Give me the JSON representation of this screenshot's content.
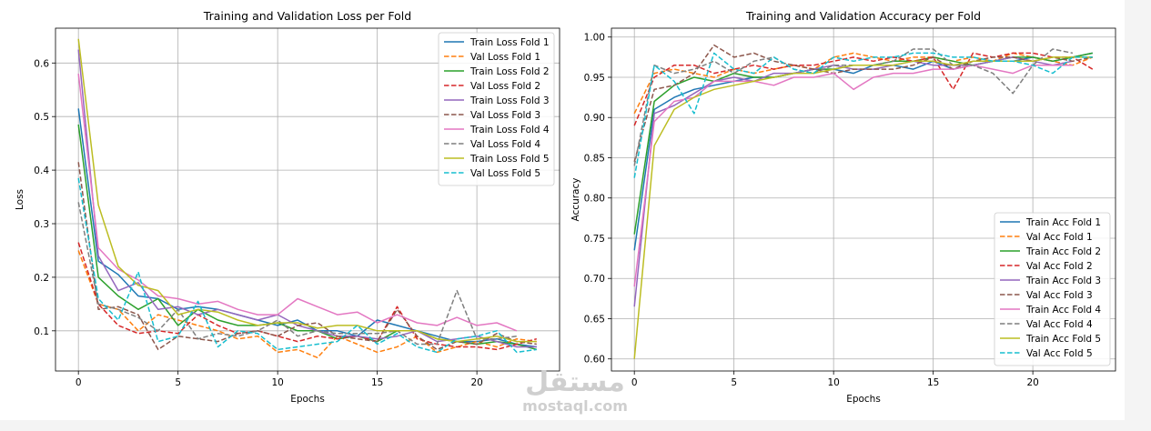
{
  "watermark": {
    "arabic": "مستقل",
    "latin": "mostaql.com"
  },
  "chart_data": [
    {
      "type": "line",
      "title": "Training and Validation Loss per Fold",
      "xlabel": "Epochs",
      "ylabel": "Loss",
      "xlim": [
        -1.15,
        24.15
      ],
      "ylim": [
        0.025,
        0.665
      ],
      "xticks": [
        0,
        5,
        10,
        15,
        20
      ],
      "yticks": [
        0.1,
        0.2,
        0.3,
        0.4,
        0.5,
        0.6
      ],
      "ytick_labels": [
        "0.1",
        "0.2",
        "0.3",
        "0.4",
        "0.5",
        "0.6"
      ],
      "grid": true,
      "legend_position": "top-right",
      "x": [
        0,
        1,
        2,
        3,
        4,
        5,
        6,
        7,
        8,
        9,
        10,
        11,
        12,
        13,
        14,
        15,
        16,
        17,
        18,
        19,
        20,
        21,
        22,
        23
      ],
      "series": [
        {
          "name": "Train Loss Fold 1",
          "color": "#1f77b4",
          "dashed": false,
          "values": [
            0.515,
            0.23,
            0.205,
            0.165,
            0.16,
            0.14,
            0.145,
            0.14,
            0.13,
            0.12,
            0.11,
            0.12,
            0.1,
            0.1,
            0.09,
            0.12,
            0.11,
            0.1,
            0.09,
            0.08,
            0.08,
            0.085,
            0.075,
            0.07
          ]
        },
        {
          "name": "Val Loss Fold 1",
          "color": "#ff7f0e",
          "dashed": true,
          "values": [
            0.25,
            0.15,
            0.14,
            0.1,
            0.13,
            0.12,
            0.11,
            0.1,
            0.085,
            0.09,
            0.06,
            0.065,
            0.05,
            0.09,
            0.075,
            0.06,
            0.07,
            0.09,
            0.06,
            0.07,
            0.08,
            0.07,
            0.085,
            0.08
          ]
        },
        {
          "name": "Train Loss Fold 2",
          "color": "#2ca02c",
          "dashed": false,
          "values": [
            0.485,
            0.2,
            0.165,
            0.14,
            0.16,
            0.11,
            0.14,
            0.12,
            0.11,
            0.11,
            0.115,
            0.1,
            0.1,
            0.085,
            0.09,
            0.08,
            0.1,
            0.1,
            0.085,
            0.08,
            0.075,
            0.08,
            0.075,
            0.065
          ]
        },
        {
          "name": "Val Loss Fold 2",
          "color": "#d62728",
          "dashed": true,
          "values": [
            0.265,
            0.15,
            0.11,
            0.095,
            0.1,
            0.095,
            0.13,
            0.11,
            0.095,
            0.1,
            0.09,
            0.08,
            0.09,
            0.085,
            0.09,
            0.08,
            0.145,
            0.085,
            0.075,
            0.07,
            0.07,
            0.065,
            0.075,
            0.085
          ]
        },
        {
          "name": "Train Loss Fold 3",
          "color": "#9467bd",
          "dashed": false,
          "values": [
            0.625,
            0.24,
            0.175,
            0.19,
            0.14,
            0.145,
            0.13,
            0.14,
            0.13,
            0.12,
            0.13,
            0.11,
            0.1,
            0.09,
            0.09,
            0.085,
            0.09,
            0.1,
            0.08,
            0.085,
            0.09,
            0.08,
            0.07,
            0.07
          ]
        },
        {
          "name": "Val Loss Fold 3",
          "color": "#8c564b",
          "dashed": true,
          "values": [
            0.415,
            0.14,
            0.145,
            0.13,
            0.065,
            0.09,
            0.085,
            0.08,
            0.095,
            0.1,
            0.09,
            0.11,
            0.115,
            0.09,
            0.085,
            0.08,
            0.14,
            0.09,
            0.065,
            0.08,
            0.075,
            0.095,
            0.08,
            0.075
          ]
        },
        {
          "name": "Train Loss Fold 4",
          "color": "#e377c2",
          "dashed": false,
          "values": [
            0.58,
            0.255,
            0.215,
            0.195,
            0.165,
            0.16,
            0.15,
            0.155,
            0.14,
            0.13,
            0.13,
            0.16,
            0.145,
            0.13,
            0.135,
            0.115,
            0.13,
            0.115,
            0.11,
            0.125,
            0.11,
            0.115,
            0.1,
            null
          ]
        },
        {
          "name": "Val Loss Fold 4",
          "color": "#7f7f7f",
          "dashed": true,
          "values": [
            0.34,
            0.15,
            0.14,
            0.125,
            0.1,
            0.14,
            0.085,
            0.095,
            0.09,
            0.1,
            0.12,
            0.09,
            0.1,
            0.095,
            0.095,
            0.095,
            0.1,
            0.075,
            0.075,
            0.175,
            0.085,
            0.085,
            0.09,
            null
          ]
        },
        {
          "name": "Train Loss Fold 5",
          "color": "#bcbd22",
          "dashed": false,
          "values": [
            0.645,
            0.335,
            0.22,
            0.185,
            0.175,
            0.13,
            0.14,
            0.135,
            0.12,
            0.11,
            0.115,
            0.115,
            0.105,
            0.11,
            0.11,
            0.1,
            0.1,
            0.1,
            0.085,
            0.08,
            0.085,
            0.09,
            0.08,
            0.08
          ]
        },
        {
          "name": "Val Loss Fold 5",
          "color": "#17becf",
          "dashed": true,
          "values": [
            0.385,
            0.16,
            0.12,
            0.21,
            0.08,
            0.09,
            0.155,
            0.07,
            0.1,
            0.095,
            0.065,
            0.07,
            0.075,
            0.08,
            0.11,
            0.075,
            0.095,
            0.07,
            0.06,
            0.085,
            0.09,
            0.1,
            0.06,
            0.065
          ]
        }
      ]
    },
    {
      "type": "line",
      "title": "Training and Validation Accuracy per Fold",
      "xlabel": "Epochs",
      "ylabel": "Accuracy",
      "xlim": [
        -1.15,
        24.15
      ],
      "ylim": [
        0.585,
        1.011
      ],
      "xticks": [
        0,
        5,
        10,
        15,
        20
      ],
      "yticks": [
        0.6,
        0.65,
        0.7,
        0.75,
        0.8,
        0.85,
        0.9,
        0.95,
        1.0
      ],
      "ytick_labels": [
        "0.60",
        "0.65",
        "0.70",
        "0.75",
        "0.80",
        "0.85",
        "0.90",
        "0.95",
        "1.00"
      ],
      "grid": true,
      "legend_position": "bottom-right",
      "x": [
        0,
        1,
        2,
        3,
        4,
        5,
        6,
        7,
        8,
        9,
        10,
        11,
        12,
        13,
        14,
        15,
        16,
        17,
        18,
        19,
        20,
        21,
        22,
        23
      ],
      "series": [
        {
          "name": "Train Acc Fold 1",
          "color": "#1f77b4",
          "dashed": false,
          "values": [
            0.735,
            0.91,
            0.925,
            0.935,
            0.94,
            0.945,
            0.95,
            0.95,
            0.955,
            0.96,
            0.96,
            0.955,
            0.965,
            0.965,
            0.96,
            0.97,
            0.96,
            0.965,
            0.97,
            0.97,
            0.975,
            0.97,
            0.975,
            0.98
          ]
        },
        {
          "name": "Val Acc Fold 1",
          "color": "#ff7f0e",
          "dashed": true,
          "values": [
            0.905,
            0.955,
            0.96,
            0.955,
            0.95,
            0.96,
            0.955,
            0.96,
            0.965,
            0.96,
            0.975,
            0.98,
            0.975,
            0.97,
            0.975,
            0.975,
            0.97,
            0.975,
            0.97,
            0.98,
            0.975,
            0.97,
            0.965,
            0.975
          ]
        },
        {
          "name": "Train Acc Fold 2",
          "color": "#2ca02c",
          "dashed": false,
          "values": [
            0.755,
            0.92,
            0.94,
            0.95,
            0.945,
            0.955,
            0.95,
            0.95,
            0.955,
            0.96,
            0.96,
            0.965,
            0.965,
            0.97,
            0.97,
            0.975,
            0.97,
            0.965,
            0.97,
            0.975,
            0.975,
            0.97,
            0.975,
            0.98
          ]
        },
        {
          "name": "Val Acc Fold 2",
          "color": "#d62728",
          "dashed": true,
          "values": [
            0.89,
            0.95,
            0.965,
            0.965,
            0.955,
            0.96,
            0.965,
            0.96,
            0.965,
            0.965,
            0.97,
            0.975,
            0.97,
            0.975,
            0.97,
            0.975,
            0.935,
            0.98,
            0.975,
            0.98,
            0.98,
            0.975,
            0.975,
            0.96
          ]
        },
        {
          "name": "Train Acc Fold 3",
          "color": "#9467bd",
          "dashed": false,
          "values": [
            0.665,
            0.905,
            0.915,
            0.93,
            0.945,
            0.95,
            0.945,
            0.955,
            0.955,
            0.96,
            0.965,
            0.96,
            0.96,
            0.965,
            0.97,
            0.965,
            0.965,
            0.965,
            0.97,
            0.975,
            0.97,
            0.965,
            0.97,
            null
          ]
        },
        {
          "name": "Val Acc Fold 3",
          "color": "#8c564b",
          "dashed": true,
          "values": [
            0.845,
            0.935,
            0.94,
            0.955,
            0.99,
            0.975,
            0.98,
            0.97,
            0.965,
            0.96,
            0.955,
            0.96,
            0.96,
            0.96,
            0.965,
            0.975,
            0.96,
            0.97,
            0.975,
            0.975,
            0.97,
            0.975,
            0.97,
            0.975
          ]
        },
        {
          "name": "Train Acc Fold 4",
          "color": "#e377c2",
          "dashed": false,
          "values": [
            0.69,
            0.895,
            0.92,
            0.925,
            0.945,
            0.945,
            0.945,
            0.94,
            0.95,
            0.95,
            0.955,
            0.935,
            0.95,
            0.955,
            0.955,
            0.96,
            0.96,
            0.965,
            0.96,
            0.955,
            0.965,
            0.965,
            0.965,
            null
          ]
        },
        {
          "name": "Val Acc Fold 4",
          "color": "#7f7f7f",
          "dashed": true,
          "values": [
            0.84,
            0.965,
            0.955,
            0.96,
            0.97,
            0.955,
            0.97,
            0.975,
            0.96,
            0.955,
            0.965,
            0.965,
            0.965,
            0.97,
            0.985,
            0.985,
            0.965,
            0.965,
            0.955,
            0.93,
            0.965,
            0.985,
            0.98,
            null
          ]
        },
        {
          "name": "Train Acc Fold 5",
          "color": "#bcbd22",
          "dashed": false,
          "values": [
            0.6,
            0.865,
            0.91,
            0.925,
            0.935,
            0.94,
            0.945,
            0.95,
            0.955,
            0.955,
            0.96,
            0.965,
            0.965,
            0.965,
            0.97,
            0.97,
            0.965,
            0.97,
            0.97,
            0.97,
            0.97,
            0.975,
            0.975,
            0.975
          ]
        },
        {
          "name": "Val Acc Fold 5",
          "color": "#17becf",
          "dashed": true,
          "values": [
            0.825,
            0.965,
            0.945,
            0.905,
            0.98,
            0.96,
            0.955,
            0.975,
            0.96,
            0.955,
            0.975,
            0.97,
            0.975,
            0.975,
            0.98,
            0.98,
            0.975,
            0.975,
            0.97,
            0.97,
            0.965,
            0.955,
            0.975,
            0.975
          ]
        }
      ]
    }
  ]
}
